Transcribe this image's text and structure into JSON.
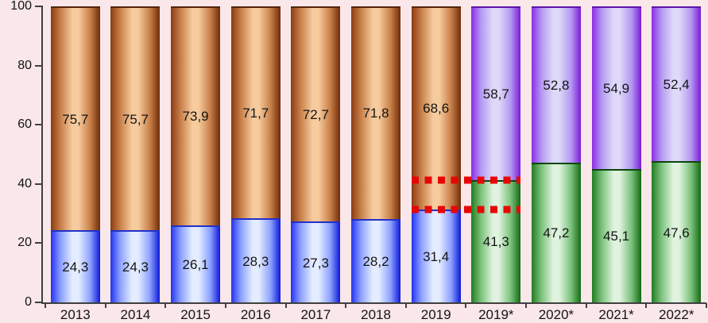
{
  "chart_data": {
    "type": "bar",
    "stacked": true,
    "title": "",
    "xlabel": "",
    "ylabel": "",
    "categories": [
      "2013",
      "2014",
      "2015",
      "2016",
      "2017",
      "2018",
      "2019",
      "2019*",
      "2020*",
      "2021*",
      "2022*"
    ],
    "category_groups": [
      "actual",
      "actual",
      "actual",
      "actual",
      "actual",
      "actual",
      "actual",
      "forecast",
      "forecast",
      "forecast",
      "forecast"
    ],
    "series": [
      {
        "name": "bottom_segment",
        "values": [
          24.3,
          24.3,
          26.1,
          28.3,
          27.3,
          28.2,
          31.4,
          41.3,
          47.2,
          45.1,
          47.6
        ],
        "labels": [
          "24,3",
          "24,3",
          "26,1",
          "28,3",
          "27,3",
          "28,2",
          "31,4",
          "41,3",
          "47,2",
          "45,1",
          "47,6"
        ]
      },
      {
        "name": "top_segment",
        "values": [
          75.7,
          75.7,
          73.9,
          71.7,
          72.7,
          71.8,
          68.6,
          58.7,
          52.8,
          54.9,
          52.4
        ],
        "labels": [
          "75,7",
          "75,7",
          "73,9",
          "71,7",
          "72,7",
          "71,8",
          "68,6",
          "58,7",
          "52,8",
          "54,9",
          "52,4"
        ]
      }
    ],
    "palette": {
      "actual": {
        "bottom": {
          "edge_left": "#2433ee",
          "mid": "#8da1ff",
          "center": "#e4edff",
          "edge_right": "#0c18d6",
          "border": "#2230c8"
        },
        "top": {
          "edge_left": "#8a3c12",
          "mid": "#c98049",
          "center": "#f6cb9e",
          "edge_right": "#6e2c09",
          "border": "#53230a"
        }
      },
      "forecast": {
        "bottom": {
          "edge_left": "#217c21",
          "mid": "#7cc27c",
          "center": "#dff3de",
          "edge_right": "#146914",
          "border": "#0b470b"
        },
        "top": {
          "edge_left": "#8a2de6",
          "mid": "#b499f2",
          "center": "#ded9f8",
          "edge_right": "#7a1cd6",
          "border": "#5d13aa"
        }
      }
    },
    "ylim": [
      0,
      100
    ],
    "yticks": [
      "0",
      "20",
      "40",
      "60",
      "80",
      "100"
    ],
    "grid": false,
    "legend": false,
    "background": "#f9e7e9",
    "axis_color": "#404040",
    "label_color": "#141414",
    "annotations": {
      "dashed_lines": [
        {
          "value": 41.3,
          "from_category": "2019",
          "to_category": "2019*"
        },
        {
          "value": 31.4,
          "from_category": "2019",
          "to_category": "2019*"
        }
      ],
      "color": "#e60606"
    }
  }
}
